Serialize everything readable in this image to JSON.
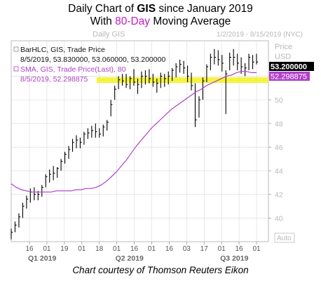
{
  "title": {
    "line1_prefix": "Daily Chart of ",
    "ticker": "GIS",
    "line1_suffix": " since January 2019",
    "line2_prefix": "With ",
    "period": "80-Day",
    "line2_suffix": " Moving Average"
  },
  "credit": "Chart courtesy of Thomson Reuters Eikon",
  "header": {
    "left_label": "Daily GIS",
    "range_label": "1/2/2019 - 8/15/2019 (NYC)",
    "price_label": "Price",
    "currency_label": "USD"
  },
  "legend": {
    "bar_line1": "BarHLC, GIS, Trade Price",
    "bar_line2": "8/5/2019, 53.830000, 53.060000, 53.200000",
    "sma_line1": "SMA, GIS, Trade Price(Last), 80",
    "sma_line2": "8/5/2019, 52.298875"
  },
  "badges": {
    "last_price": "53.200000",
    "sma_value": "52.298875"
  },
  "axis_badge": "Auto",
  "colors": {
    "bars": "#000000",
    "sma": "#b040c8",
    "highlight": "#f0f000",
    "grid": "#d8d8d8",
    "frame": "#9a9a9a",
    "last_badge_bg": "#000000",
    "sma_badge_bg": "#b040c8"
  },
  "chart_data": {
    "type": "line",
    "ylim": [
      38,
      55
    ],
    "y_ticks": [
      "40",
      "42",
      "44",
      "46",
      "48",
      "50",
      "52"
    ],
    "x_tick_labels": [
      "16",
      "01",
      "19",
      "01",
      "18",
      "01",
      "16",
      "01",
      "16",
      "03",
      "17",
      "01",
      "16",
      "01"
    ],
    "x_month_labels": [
      "Q1 2019",
      "Q2 2019",
      "Q3 2019"
    ],
    "series": [
      {
        "name": "BarHLC, GIS, Trade Price",
        "kind": "hlc-bars",
        "highs": [
          39.1,
          39.7,
          40.4,
          41.3,
          41.9,
          42.5,
          42.6,
          42.3,
          42.8,
          43.7,
          44.1,
          44.4,
          44.3,
          45.0,
          45.6,
          46.1,
          46.7,
          47.0,
          46.8,
          47.3,
          47.6,
          47.8,
          48.0,
          47.6,
          47.9,
          48.3,
          50.0,
          51.2,
          52.0,
          52.2,
          52.2,
          52.0,
          52.6,
          51.8,
          52.4,
          52.5,
          52.6,
          52.2,
          51.8,
          52.3,
          52.2,
          52.4,
          52.7,
          53.1,
          53.4,
          53.3,
          52.9,
          52.3,
          51.4,
          50.3,
          51.9,
          53.0,
          53.9,
          54.3,
          54.2,
          53.8,
          52.5,
          54.0,
          54.3,
          53.9,
          53.6,
          53.1,
          53.9,
          53.8,
          53.9
        ],
        "lows": [
          38.2,
          38.8,
          39.2,
          40.0,
          40.8,
          41.3,
          41.5,
          41.5,
          41.8,
          42.6,
          43.0,
          43.2,
          43.4,
          44.0,
          44.6,
          45.0,
          45.6,
          45.9,
          45.9,
          46.2,
          46.7,
          46.8,
          46.8,
          46.8,
          46.9,
          47.4,
          48.6,
          50.0,
          50.9,
          51.2,
          51.0,
          50.9,
          51.2,
          50.5,
          51.0,
          51.3,
          51.4,
          51.1,
          50.6,
          51.0,
          51.1,
          51.3,
          51.6,
          51.9,
          52.3,
          52.2,
          51.5,
          50.8,
          47.7,
          48.5,
          50.0,
          51.5,
          52.5,
          53.0,
          52.9,
          52.4,
          48.8,
          52.5,
          52.9,
          52.5,
          52.2,
          52.0,
          52.5,
          52.6,
          53.0
        ],
        "closes": [
          38.8,
          39.4,
          40.1,
          41.0,
          41.6,
          42.2,
          42.0,
          42.0,
          42.6,
          43.5,
          43.7,
          43.8,
          44.2,
          44.8,
          45.4,
          45.8,
          46.4,
          46.6,
          46.4,
          47.1,
          47.2,
          47.4,
          47.3,
          47.1,
          47.7,
          48.1,
          49.6,
          50.9,
          51.7,
          51.6,
          51.3,
          51.8,
          51.5,
          51.3,
          52.0,
          52.0,
          51.8,
          51.5,
          51.4,
          52.0,
          51.8,
          52.0,
          52.5,
          52.8,
          53.0,
          52.7,
          52.0,
          51.2,
          48.3,
          50.0,
          51.6,
          52.8,
          53.6,
          53.6,
          53.4,
          53.1,
          52.2,
          53.6,
          53.6,
          53.1,
          52.8,
          52.7,
          53.6,
          53.2,
          53.2
        ]
      },
      {
        "name": "SMA, GIS, Trade Price(Last), 80",
        "kind": "line",
        "values": [
          42.9,
          42.6,
          42.4,
          42.3,
          42.2,
          42.2,
          42.2,
          42.2,
          42.2,
          42.3,
          42.3,
          42.3,
          42.3,
          42.4,
          42.4,
          42.5,
          42.5,
          42.6,
          42.8,
          43.1,
          43.5,
          43.9,
          44.4,
          44.9,
          45.5,
          46.1,
          46.6,
          47.1,
          47.6,
          48.0,
          48.4,
          48.8,
          49.2,
          49.5,
          49.8,
          50.1,
          50.4,
          50.7,
          50.9,
          51.2,
          51.4,
          51.6,
          51.8,
          52.0,
          52.1,
          52.3,
          52.4,
          52.4,
          52.3,
          52.3
        ]
      }
    ]
  }
}
